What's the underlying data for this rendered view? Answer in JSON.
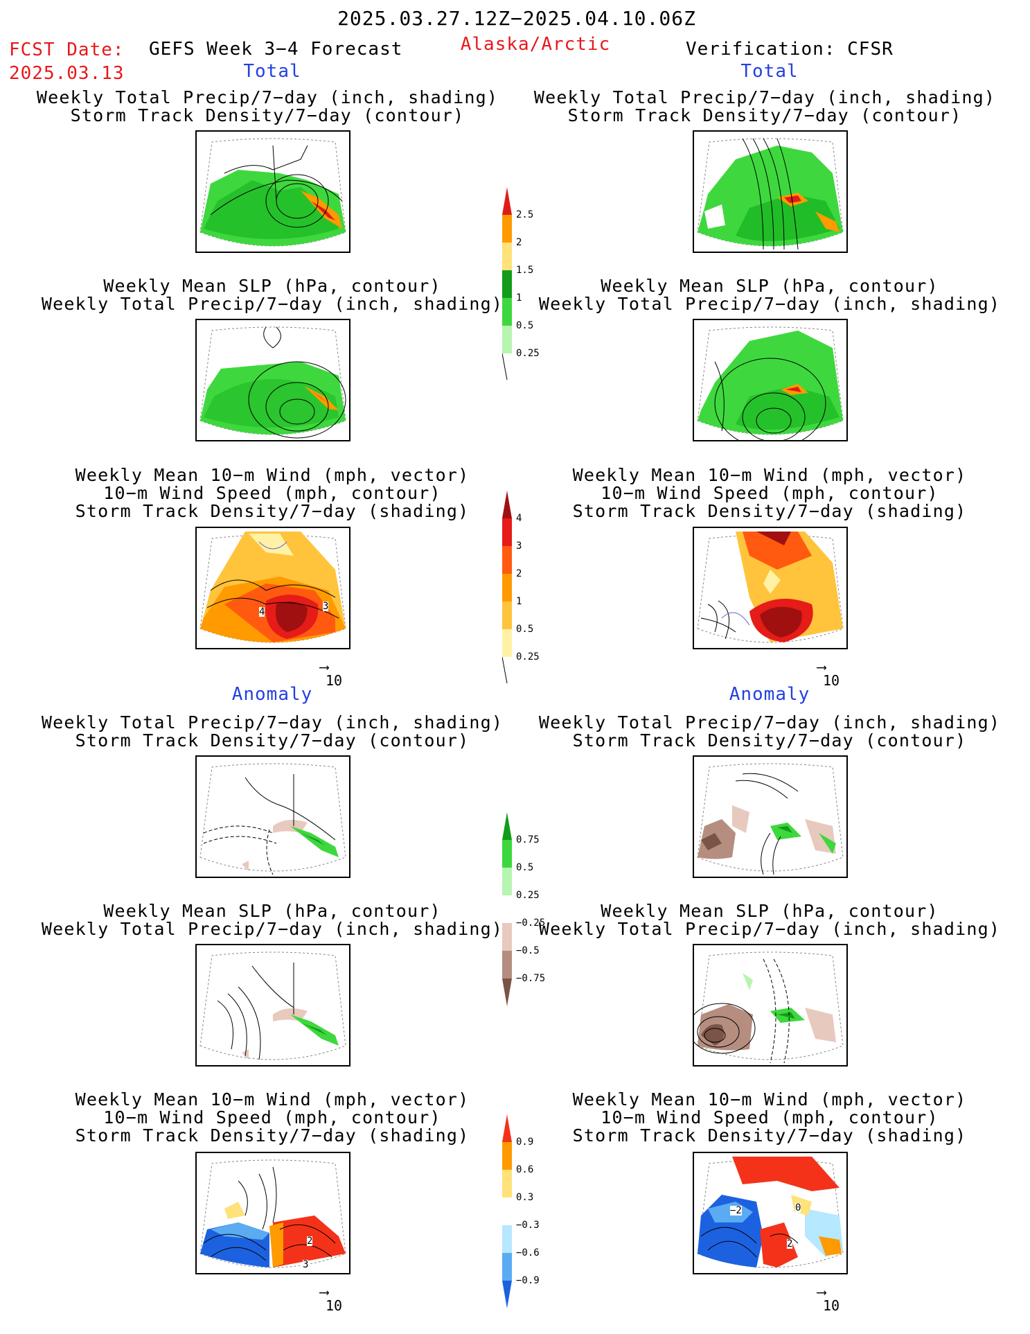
{
  "header": {
    "date_range": "2025.03.27.12Z−2025.04.10.06Z",
    "fcst_label": "FCST Date:",
    "fcst_date": "2025.03.13",
    "forecast_title": "GEFS Week 3−4 Forecast",
    "region": "Alaska/Arctic",
    "verification": "Verification: CFSR"
  },
  "sections": {
    "total": "Total",
    "anomaly": "Anomaly"
  },
  "panel_titles": {
    "precip_storm": "Weekly Total Precip/7−day (inch, shading)\nStorm Track Density/7−day (contour)",
    "slp_precip": "Weekly Mean SLP (hPa, contour)\nWeekly Total Precip/7−day (inch, shading)",
    "wind_storm": "Weekly Mean 10−m Wind (mph, vector)\n10−m Wind Speed (mph, contour)\nStorm Track Density/7−day (shading)"
  },
  "vector_ref": "10",
  "colorbars": {
    "precip_total": {
      "labels": [
        "2.5",
        "2",
        "1.5",
        "1",
        "0.5",
        "0.25"
      ],
      "colors": [
        "#e01c18",
        "#ff9a00",
        "#ffe27a",
        "#129c1a",
        "#3ed83e",
        "#b6f5b0"
      ]
    },
    "storm_total": {
      "labels": [
        "4",
        "3",
        "2",
        "1",
        "0.5",
        "0.25"
      ],
      "colors": [
        "#a01010",
        "#e51c18",
        "#ff5a10",
        "#ff9a00",
        "#ffc43c",
        "#fff2a6"
      ]
    },
    "precip_anom": {
      "labels": [
        "0.75",
        "0.5",
        "0.25",
        "−0.25",
        "−0.5",
        "−0.75"
      ],
      "colors": [
        "#129c1a",
        "#3ed83e",
        "#b6f5b0",
        "#ffffff",
        "#e8c9bd",
        "#b58e80",
        "#7a5446"
      ]
    },
    "storm_anom": {
      "labels": [
        "0.9",
        "0.6",
        "0.3",
        "−0.3",
        "−0.6",
        "−0.9"
      ],
      "colors": [
        "#f4321a",
        "#ff9a00",
        "#ffe27a",
        "#ffffff",
        "#b6e8ff",
        "#5aabf2",
        "#1c62e0"
      ]
    }
  },
  "map_labels": {
    "fc_wind_total": [
      "4",
      "3"
    ],
    "fc_wind_anom": [
      "2",
      "3"
    ],
    "ver_wind_anom": [
      "−2",
      "0",
      "2"
    ]
  }
}
